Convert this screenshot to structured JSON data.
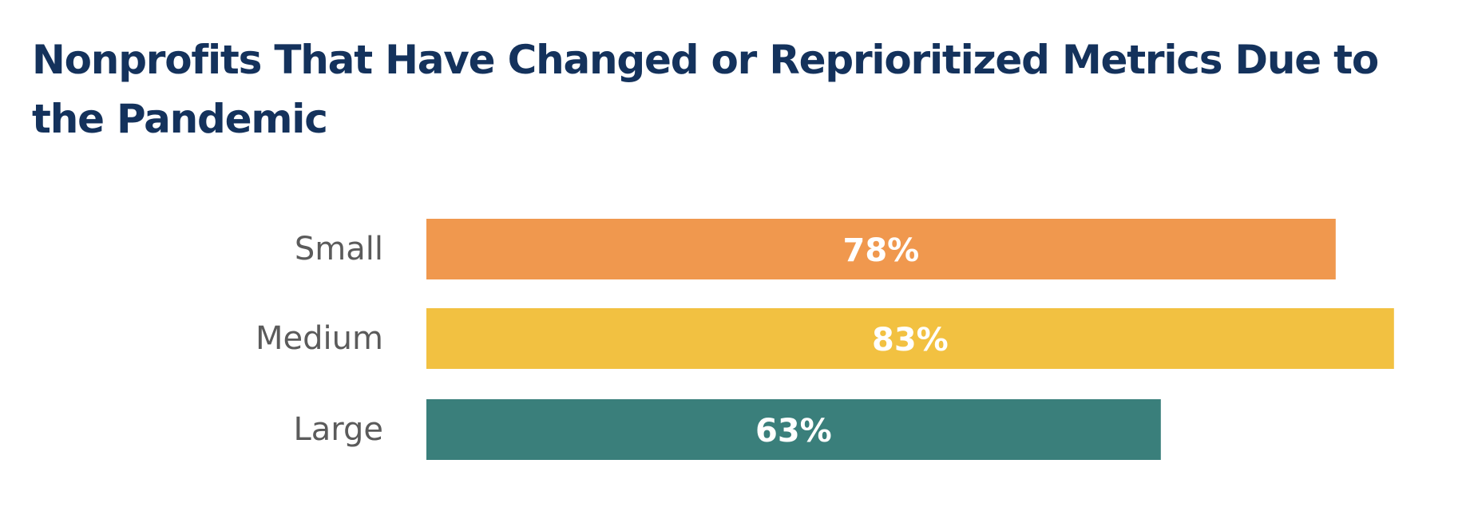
{
  "chart_data": {
    "type": "bar",
    "orientation": "horizontal",
    "title": "Nonprofits That Have Changed or Reprioritized Metrics Due to the Pandemic",
    "categories": [
      "Small",
      "Medium",
      "Large"
    ],
    "values": [
      78,
      83,
      63
    ],
    "value_labels": [
      "78%",
      "83%",
      "63%"
    ],
    "colors": [
      "#f0984e",
      "#f2c141",
      "#3a7f7b"
    ],
    "xlim": [
      0,
      100
    ],
    "grid": false,
    "legend": "none"
  }
}
